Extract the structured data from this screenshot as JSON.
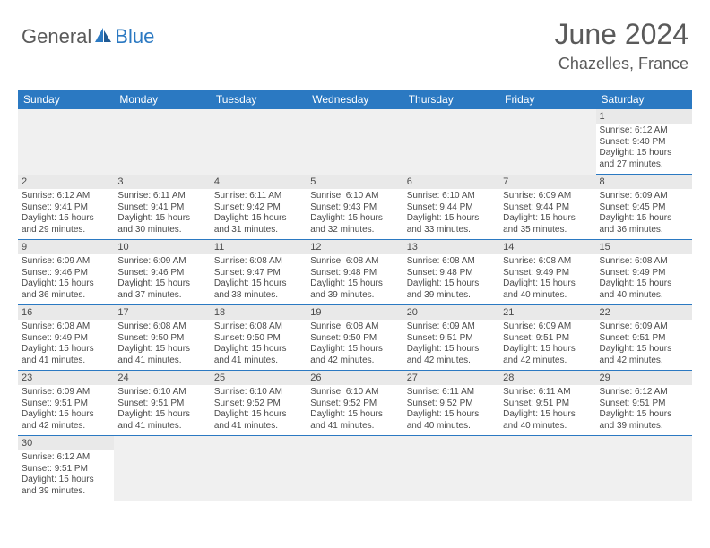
{
  "brand": {
    "general": "General",
    "blue": "Blue"
  },
  "title": "June 2024",
  "location": "Chazelles, France",
  "colors": {
    "header_bg": "#2b79c2",
    "header_text": "#ffffff",
    "daynum_bg": "#e9e9e9",
    "empty_bg": "#f0f0f0",
    "text": "#4a4a4a",
    "rule": "#2b79c2"
  },
  "dayNames": [
    "Sunday",
    "Monday",
    "Tuesday",
    "Wednesday",
    "Thursday",
    "Friday",
    "Saturday"
  ],
  "weeks": [
    [
      null,
      null,
      null,
      null,
      null,
      null,
      {
        "n": "1",
        "sr": "Sunrise: 6:12 AM",
        "ss": "Sunset: 9:40 PM",
        "d1": "Daylight: 15 hours",
        "d2": "and 27 minutes."
      }
    ],
    [
      {
        "n": "2",
        "sr": "Sunrise: 6:12 AM",
        "ss": "Sunset: 9:41 PM",
        "d1": "Daylight: 15 hours",
        "d2": "and 29 minutes."
      },
      {
        "n": "3",
        "sr": "Sunrise: 6:11 AM",
        "ss": "Sunset: 9:41 PM",
        "d1": "Daylight: 15 hours",
        "d2": "and 30 minutes."
      },
      {
        "n": "4",
        "sr": "Sunrise: 6:11 AM",
        "ss": "Sunset: 9:42 PM",
        "d1": "Daylight: 15 hours",
        "d2": "and 31 minutes."
      },
      {
        "n": "5",
        "sr": "Sunrise: 6:10 AM",
        "ss": "Sunset: 9:43 PM",
        "d1": "Daylight: 15 hours",
        "d2": "and 32 minutes."
      },
      {
        "n": "6",
        "sr": "Sunrise: 6:10 AM",
        "ss": "Sunset: 9:44 PM",
        "d1": "Daylight: 15 hours",
        "d2": "and 33 minutes."
      },
      {
        "n": "7",
        "sr": "Sunrise: 6:09 AM",
        "ss": "Sunset: 9:44 PM",
        "d1": "Daylight: 15 hours",
        "d2": "and 35 minutes."
      },
      {
        "n": "8",
        "sr": "Sunrise: 6:09 AM",
        "ss": "Sunset: 9:45 PM",
        "d1": "Daylight: 15 hours",
        "d2": "and 36 minutes."
      }
    ],
    [
      {
        "n": "9",
        "sr": "Sunrise: 6:09 AM",
        "ss": "Sunset: 9:46 PM",
        "d1": "Daylight: 15 hours",
        "d2": "and 36 minutes."
      },
      {
        "n": "10",
        "sr": "Sunrise: 6:09 AM",
        "ss": "Sunset: 9:46 PM",
        "d1": "Daylight: 15 hours",
        "d2": "and 37 minutes."
      },
      {
        "n": "11",
        "sr": "Sunrise: 6:08 AM",
        "ss": "Sunset: 9:47 PM",
        "d1": "Daylight: 15 hours",
        "d2": "and 38 minutes."
      },
      {
        "n": "12",
        "sr": "Sunrise: 6:08 AM",
        "ss": "Sunset: 9:48 PM",
        "d1": "Daylight: 15 hours",
        "d2": "and 39 minutes."
      },
      {
        "n": "13",
        "sr": "Sunrise: 6:08 AM",
        "ss": "Sunset: 9:48 PM",
        "d1": "Daylight: 15 hours",
        "d2": "and 39 minutes."
      },
      {
        "n": "14",
        "sr": "Sunrise: 6:08 AM",
        "ss": "Sunset: 9:49 PM",
        "d1": "Daylight: 15 hours",
        "d2": "and 40 minutes."
      },
      {
        "n": "15",
        "sr": "Sunrise: 6:08 AM",
        "ss": "Sunset: 9:49 PM",
        "d1": "Daylight: 15 hours",
        "d2": "and 40 minutes."
      }
    ],
    [
      {
        "n": "16",
        "sr": "Sunrise: 6:08 AM",
        "ss": "Sunset: 9:49 PM",
        "d1": "Daylight: 15 hours",
        "d2": "and 41 minutes."
      },
      {
        "n": "17",
        "sr": "Sunrise: 6:08 AM",
        "ss": "Sunset: 9:50 PM",
        "d1": "Daylight: 15 hours",
        "d2": "and 41 minutes."
      },
      {
        "n": "18",
        "sr": "Sunrise: 6:08 AM",
        "ss": "Sunset: 9:50 PM",
        "d1": "Daylight: 15 hours",
        "d2": "and 41 minutes."
      },
      {
        "n": "19",
        "sr": "Sunrise: 6:08 AM",
        "ss": "Sunset: 9:50 PM",
        "d1": "Daylight: 15 hours",
        "d2": "and 42 minutes."
      },
      {
        "n": "20",
        "sr": "Sunrise: 6:09 AM",
        "ss": "Sunset: 9:51 PM",
        "d1": "Daylight: 15 hours",
        "d2": "and 42 minutes."
      },
      {
        "n": "21",
        "sr": "Sunrise: 6:09 AM",
        "ss": "Sunset: 9:51 PM",
        "d1": "Daylight: 15 hours",
        "d2": "and 42 minutes."
      },
      {
        "n": "22",
        "sr": "Sunrise: 6:09 AM",
        "ss": "Sunset: 9:51 PM",
        "d1": "Daylight: 15 hours",
        "d2": "and 42 minutes."
      }
    ],
    [
      {
        "n": "23",
        "sr": "Sunrise: 6:09 AM",
        "ss": "Sunset: 9:51 PM",
        "d1": "Daylight: 15 hours",
        "d2": "and 42 minutes."
      },
      {
        "n": "24",
        "sr": "Sunrise: 6:10 AM",
        "ss": "Sunset: 9:51 PM",
        "d1": "Daylight: 15 hours",
        "d2": "and 41 minutes."
      },
      {
        "n": "25",
        "sr": "Sunrise: 6:10 AM",
        "ss": "Sunset: 9:52 PM",
        "d1": "Daylight: 15 hours",
        "d2": "and 41 minutes."
      },
      {
        "n": "26",
        "sr": "Sunrise: 6:10 AM",
        "ss": "Sunset: 9:52 PM",
        "d1": "Daylight: 15 hours",
        "d2": "and 41 minutes."
      },
      {
        "n": "27",
        "sr": "Sunrise: 6:11 AM",
        "ss": "Sunset: 9:52 PM",
        "d1": "Daylight: 15 hours",
        "d2": "and 40 minutes."
      },
      {
        "n": "28",
        "sr": "Sunrise: 6:11 AM",
        "ss": "Sunset: 9:51 PM",
        "d1": "Daylight: 15 hours",
        "d2": "and 40 minutes."
      },
      {
        "n": "29",
        "sr": "Sunrise: 6:12 AM",
        "ss": "Sunset: 9:51 PM",
        "d1": "Daylight: 15 hours",
        "d2": "and 39 minutes."
      }
    ],
    [
      {
        "n": "30",
        "sr": "Sunrise: 6:12 AM",
        "ss": "Sunset: 9:51 PM",
        "d1": "Daylight: 15 hours",
        "d2": "and 39 minutes."
      },
      null,
      null,
      null,
      null,
      null,
      null
    ]
  ]
}
